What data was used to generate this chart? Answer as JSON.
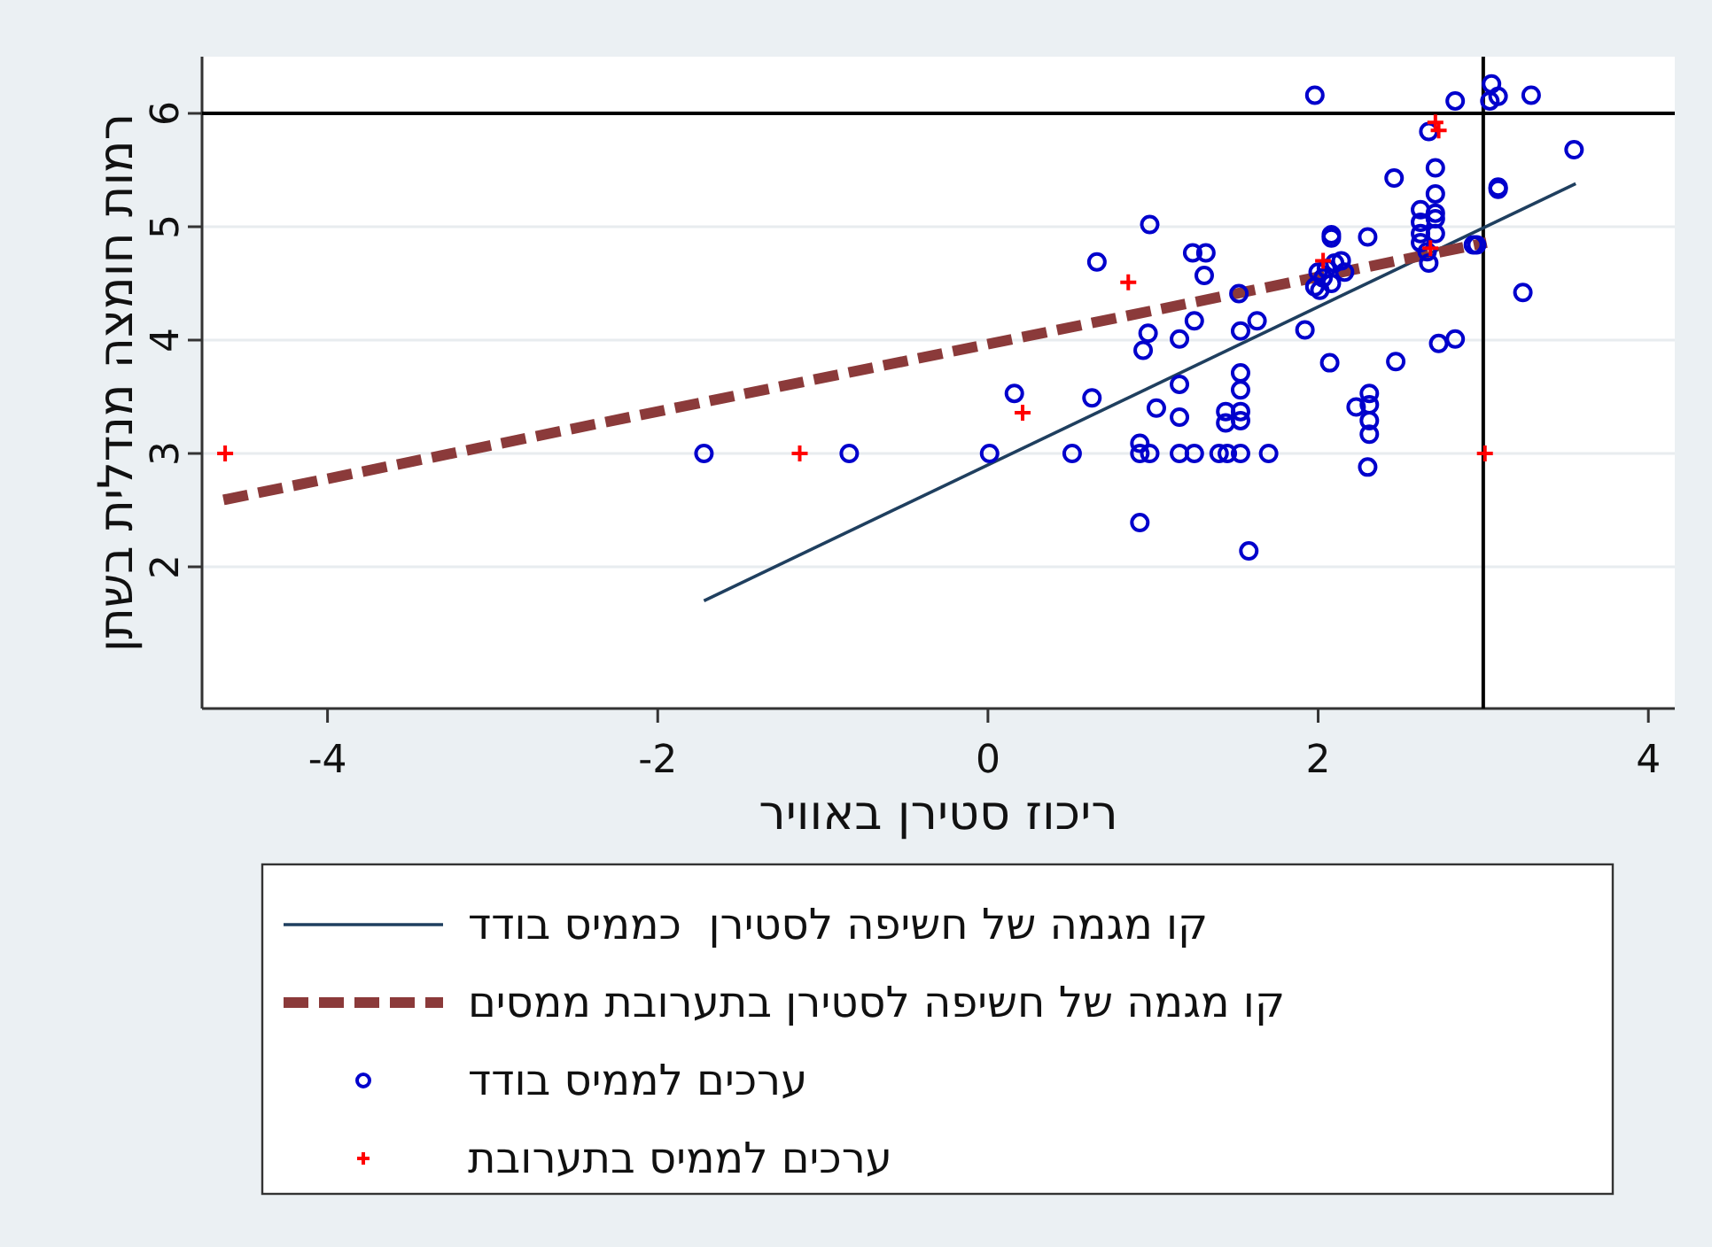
{
  "chart_data": {
    "type": "scatter",
    "xlabel": "ריכוז סטירן באוויר",
    "ylabel": "רמות חומצה מנדלית בשתן",
    "xlim": [
      -4.76,
      4.16
    ],
    "ylim": [
      0.75,
      6.5
    ],
    "xticks": [
      -4,
      -2,
      0,
      2,
      4
    ],
    "yticks": [
      2,
      3,
      4,
      5,
      6
    ],
    "grid": "y",
    "legend": "bottom",
    "ref_lines": [
      {
        "axis": "y",
        "value": 6,
        "color": "#000000"
      },
      {
        "axis": "x",
        "value": 3,
        "color": "#000000"
      }
    ],
    "series": [
      {
        "name": "קו מגמה של חשיפה לסטירן  כממיס בודד",
        "type": "line",
        "color": "#1f3f5f",
        "line_style": "solid",
        "marker": "none",
        "x": [
          -1.72,
          3.56
        ],
        "values": [
          1.7,
          5.38
        ]
      },
      {
        "name": "קו מגמה של חשיפה לסטירן בתערובת ממסים",
        "type": "line",
        "color": "#8b3a3a",
        "line_style": "dashed",
        "marker": "none",
        "x": [
          -4.63,
          3.02
        ],
        "values": [
          2.59,
          4.86
        ]
      },
      {
        "name": "ערכים לממיס בודד",
        "type": "scatter",
        "color": "#0000cc",
        "marker": "circle",
        "x": [
          1.98,
          2.83,
          3.05,
          3.04,
          3.09,
          3.29,
          2.67,
          3.55,
          2.71,
          2.46,
          2.71,
          3.09,
          3.09,
          2.62,
          2.71,
          2.62,
          2.71,
          2.62,
          2.71,
          2.62,
          2.66,
          2.67,
          2.94,
          2.96,
          0.98,
          2.3,
          2.08,
          2.08,
          0.66,
          1.24,
          1.32,
          1.31,
          1.52,
          2.0,
          2.05,
          2.1,
          2.14,
          2.16,
          1.98,
          2.01,
          2.08,
          2.03,
          3.24,
          0.97,
          0.94,
          1.16,
          1.25,
          1.53,
          1.63,
          1.92,
          2.07,
          2.47,
          2.73,
          2.83,
          0.16,
          0.63,
          1.16,
          1.53,
          1.53,
          1.02,
          1.16,
          1.44,
          1.53,
          1.44,
          1.53,
          2.31,
          2.31,
          2.23,
          2.31,
          2.31,
          2.3,
          0.01,
          0.51,
          0.92,
          0.98,
          1.16,
          1.25,
          1.4,
          1.45,
          1.53,
          1.7,
          0.92,
          0.92,
          1.58,
          -1.72,
          -0.84
        ],
        "values": [
          6.16,
          6.11,
          6.26,
          6.11,
          6.15,
          6.16,
          5.84,
          5.68,
          5.52,
          5.43,
          5.29,
          5.35,
          5.33,
          5.15,
          5.12,
          5.04,
          5.07,
          4.94,
          4.94,
          4.86,
          4.78,
          4.68,
          4.84,
          4.84,
          5.02,
          4.91,
          4.93,
          4.9,
          4.69,
          4.77,
          4.77,
          4.57,
          4.41,
          4.6,
          4.63,
          4.68,
          4.7,
          4.6,
          4.47,
          4.44,
          4.5,
          4.55,
          4.42,
          4.06,
          3.91,
          4.01,
          4.17,
          4.08,
          4.17,
          4.09,
          3.8,
          3.81,
          3.97,
          4.01,
          3.53,
          3.49,
          3.61,
          3.71,
          3.56,
          3.4,
          3.32,
          3.37,
          3.37,
          3.27,
          3.29,
          3.53,
          3.43,
          3.41,
          3.29,
          3.17,
          2.88,
          3,
          3,
          3,
          3,
          3,
          3,
          3,
          3,
          3,
          3,
          3.09,
          2.39,
          2.14,
          3,
          3
        ]
      },
      {
        "name": "ערכים לממיס בתערובת",
        "type": "scatter",
        "color": "#ff0000",
        "marker": "cross",
        "x": [
          2.71,
          2.73,
          0.85,
          2.03,
          2.68,
          0.21,
          3.01,
          -4.62,
          -1.14
        ],
        "values": [
          5.92,
          5.85,
          4.51,
          4.7,
          4.81,
          3.36,
          3,
          3,
          3
        ]
      }
    ]
  }
}
